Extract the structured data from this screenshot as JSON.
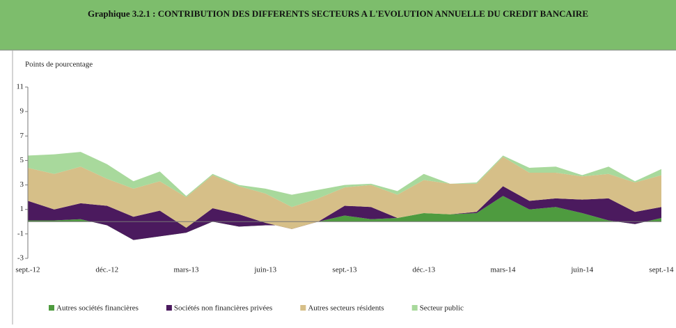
{
  "chart_data": {
    "type": "stacked-area",
    "title": "Graphique 3.2.1 : CONTRIBUTION DES DIFFERENTS SECTEURS A L'EVOLUTION ANNUELLE DU CREDIT BANCAIRE",
    "ylabel": "Points de pourcentage",
    "categories": [
      "sept.-12",
      null,
      null,
      "déc.-12",
      null,
      null,
      "mars-13",
      null,
      null,
      "juin-13",
      null,
      null,
      "sept.-13",
      null,
      null,
      "déc.-13",
      null,
      null,
      "mars-14",
      null,
      null,
      "juin-14",
      null,
      null,
      "sept.-14"
    ],
    "series": [
      {
        "name": "Autres sociétés financières",
        "color": "#4e9b3f",
        "values": [
          0.1,
          0.1,
          0.2,
          -0.3,
          -1.5,
          -1.2,
          -0.9,
          0.0,
          -0.4,
          -0.3,
          -0.3,
          0.0,
          0.5,
          0.2,
          0.3,
          0.7,
          0.6,
          0.7,
          2.1,
          1.0,
          1.2,
          0.7,
          0.1,
          -0.2,
          0.3
        ]
      },
      {
        "name": "Sociétés non financières privées",
        "color": "#4b1a5e",
        "values": [
          1.6,
          0.9,
          1.3,
          1.6,
          1.9,
          2.1,
          0.4,
          1.1,
          1.0,
          0.2,
          -0.3,
          0.0,
          0.8,
          1.0,
          0.0,
          0.0,
          0.0,
          0.1,
          0.8,
          0.7,
          0.7,
          1.1,
          1.8,
          1.0,
          0.9
        ]
      },
      {
        "name": "Autres secteurs résidents",
        "color": "#d6bf88",
        "values": [
          2.7,
          2.9,
          3.0,
          2.2,
          2.3,
          2.4,
          2.5,
          2.7,
          2.3,
          2.4,
          1.8,
          1.9,
          1.5,
          1.8,
          1.9,
          2.7,
          2.5,
          2.3,
          2.4,
          2.3,
          2.1,
          1.9,
          2.0,
          2.4,
          2.6
        ]
      },
      {
        "name": "Secteur public",
        "color": "#a8d99c",
        "values": [
          1.0,
          1.6,
          1.2,
          1.2,
          0.6,
          0.8,
          0.1,
          0.1,
          0.1,
          0.4,
          1.0,
          0.7,
          0.2,
          0.1,
          0.3,
          0.5,
          0.0,
          0.1,
          0.1,
          0.4,
          0.5,
          0.1,
          0.6,
          0.1,
          0.5
        ]
      }
    ],
    "ylim": [
      -3,
      11
    ],
    "yticks": [
      11,
      9,
      7,
      5,
      3,
      1,
      -1,
      -3
    ]
  }
}
